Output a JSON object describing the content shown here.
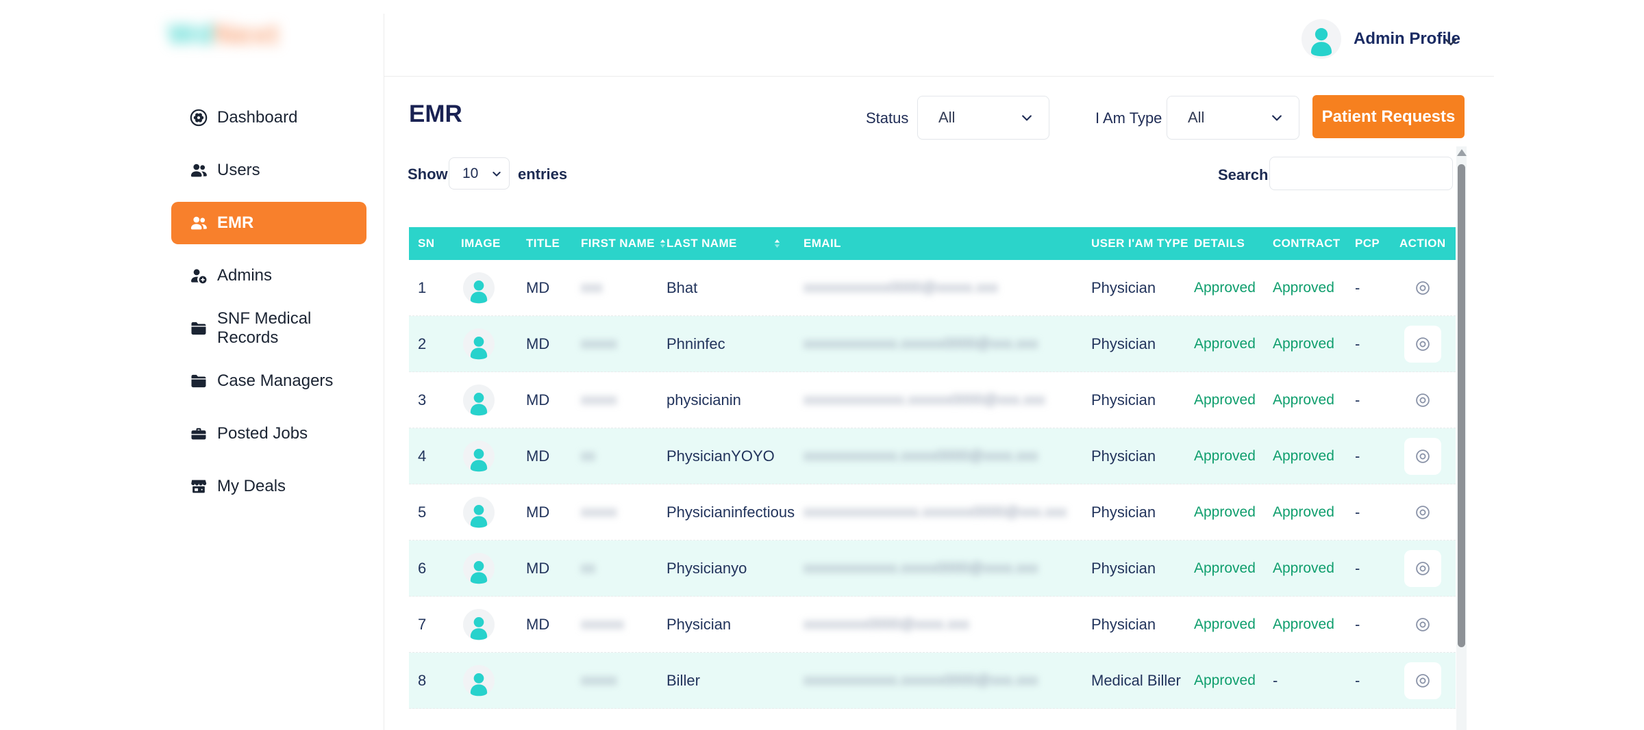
{
  "colors": {
    "accent_orange": "#F6801F",
    "sidebar_active_orange": "#F8802C",
    "table_header_teal": "#2BD4CA",
    "row_alternate_teal": "#E8FAF7",
    "approved_green": "#0F9E6D",
    "navy_text": "#1A2B63",
    "logo_teal": "#53D9D2",
    "logo_orange": "#F9A87E"
  },
  "brand": {
    "logo_part1": "Wd",
    "logo_part2": "Next"
  },
  "profile": {
    "name": "Admin Profile"
  },
  "sidebar": {
    "items": [
      {
        "label": "Dashboard",
        "icon": "dashboard-icon",
        "active": false
      },
      {
        "label": "Users",
        "icon": "users-icon",
        "active": false
      },
      {
        "label": "EMR",
        "icon": "emr-users-icon",
        "active": true
      },
      {
        "label": "Admins",
        "icon": "admin-add-icon",
        "active": false
      },
      {
        "label": "SNF Medical Records",
        "icon": "folder-icon",
        "active": false
      },
      {
        "label": "Case Managers",
        "icon": "folder-icon",
        "active": false
      },
      {
        "label": "Posted Jobs",
        "icon": "briefcase-icon",
        "active": false
      },
      {
        "label": "My Deals",
        "icon": "store-icon",
        "active": false
      }
    ]
  },
  "toolbar": {
    "title": "EMR",
    "status_label": "Status",
    "status_value": "All",
    "iam_type_label": "I Am Type",
    "iam_type_value": "All",
    "patient_requests_label": "Patient Requests"
  },
  "list_controls": {
    "show_label": "Show",
    "page_size": "10",
    "entries_label": "entries",
    "search_label": "Search:",
    "search_value": ""
  },
  "table": {
    "columns": [
      {
        "label": "SN"
      },
      {
        "label": "IMAGE"
      },
      {
        "label": "TITLE"
      },
      {
        "label": "FIRST NAME",
        "sort": "inline"
      },
      {
        "label": "LAST NAME",
        "sort": "right"
      },
      {
        "label": "EMAIL"
      },
      {
        "label": "USER I'AM TYPE"
      },
      {
        "label": "DETAILS"
      },
      {
        "label": "CONTRACT"
      },
      {
        "label": "PCP"
      },
      {
        "label": "ACTION"
      }
    ],
    "rows": [
      {
        "sn": "1",
        "title": "MD",
        "first_name_redacted": "xxx",
        "last_name": "Bhat",
        "email_redacted": "xxxxxxxxxxxx0000@xxxxx.xxx",
        "user_iam_type": "Physician",
        "details": "Approved",
        "contract": "Approved",
        "pcp": "-"
      },
      {
        "sn": "2",
        "title": "MD",
        "first_name_redacted": "xxxxx",
        "last_name": "Phninfec",
        "email_redacted": "xxxxxxxxxxxxx.xxxxxx0000@xxx.xxx",
        "user_iam_type": "Physician",
        "details": "Approved",
        "contract": "Approved",
        "pcp": "-"
      },
      {
        "sn": "3",
        "title": "MD",
        "first_name_redacted": "xxxxx",
        "last_name": "physicianin",
        "email_redacted": "xxxxxxxxxxxxxx.xxxxxx0000@xxx.xxx",
        "user_iam_type": "Physician",
        "details": "Approved",
        "contract": "Approved",
        "pcp": "-"
      },
      {
        "sn": "4",
        "title": "MD",
        "first_name_redacted": "xx",
        "last_name": "PhysicianYOYO",
        "email_redacted": "xxxxxxxxxxxxx.xxxxx0000@xxxx.xxx",
        "user_iam_type": "Physician",
        "details": "Approved",
        "contract": "Approved",
        "pcp": "-"
      },
      {
        "sn": "5",
        "title": "MD",
        "first_name_redacted": "xxxxx",
        "last_name": "Physicianinfectious",
        "email_redacted": "xxxxxxxxxxxxxxxx.xxxxxxx0000@xxx.xxx",
        "user_iam_type": "Physician",
        "details": "Approved",
        "contract": "Approved",
        "pcp": "-"
      },
      {
        "sn": "6",
        "title": "MD",
        "first_name_redacted": "xx",
        "last_name": "Physicianyo",
        "email_redacted": "xxxxxxxxxxxxx.xxxxx0000@xxxx.xxx",
        "user_iam_type": "Physician",
        "details": "Approved",
        "contract": "Approved",
        "pcp": "-"
      },
      {
        "sn": "7",
        "title": "MD",
        "first_name_redacted": "xxxxxx",
        "last_name": "Physician",
        "email_redacted": "xxxxxxxxx0000@xxxx.xxx",
        "user_iam_type": "Physician",
        "details": "Approved",
        "contract": "Approved",
        "pcp": "-"
      },
      {
        "sn": "8",
        "title": "",
        "first_name_redacted": "xxxxx",
        "last_name": "Biller",
        "email_redacted": "xxxxxxxxxxxxx.xxxxxx0000@xxx.xxx",
        "user_iam_type": "Medical Biller",
        "details": "Approved",
        "contract": "-",
        "pcp": "-"
      }
    ]
  }
}
